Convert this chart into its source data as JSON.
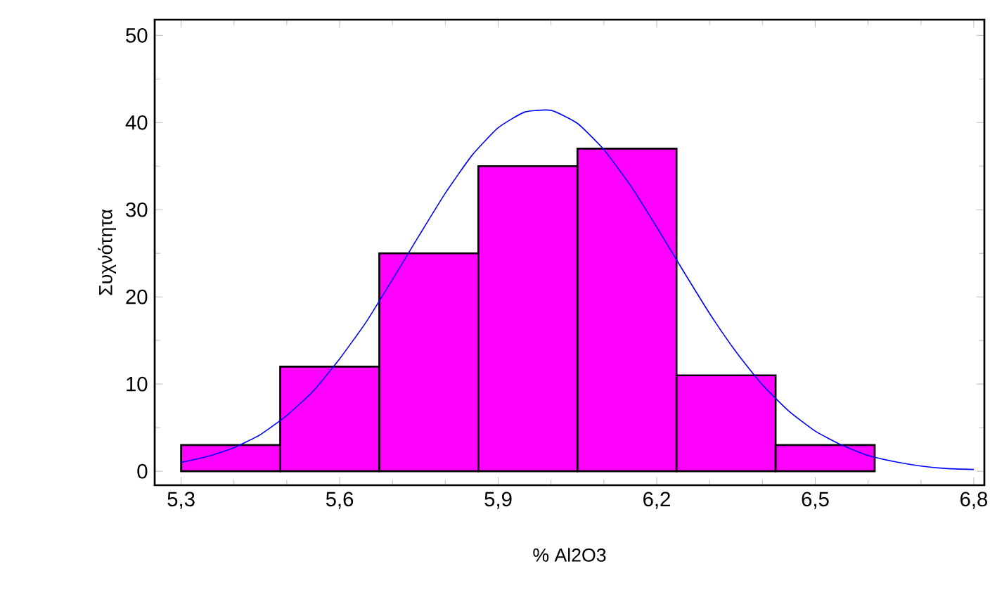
{
  "chart_data": {
    "type": "histogram",
    "xlabel": "% Al2O3",
    "ylabel": "Συχνότητα",
    "series": [
      {
        "color": "#ff00ff",
        "bins": [
          5.3,
          5.4875,
          5.675,
          5.8625,
          6.05,
          6.2375,
          6.425,
          6.6125
        ],
        "values": [
          3,
          12,
          25,
          35,
          37,
          11,
          3
        ]
      },
      {
        "type": "line",
        "color": "#0000ff",
        "x": [
          5.3,
          5.35,
          5.4,
          5.45,
          5.5,
          5.55,
          5.6,
          5.65,
          5.7,
          5.75,
          5.8,
          5.85,
          5.9,
          5.95,
          6.0,
          6.05,
          6.1,
          6.15,
          6.2,
          6.25,
          6.3,
          6.35,
          6.4,
          6.45,
          6.5,
          6.55,
          6.6,
          6.65,
          6.7,
          6.75,
          6.8
        ],
        "values": [
          1.0,
          1.7,
          2.7,
          4.2,
          6.4,
          9.2,
          12.9,
          17.1,
          22.0,
          27.0,
          31.9,
          36.2,
          39.4,
          41.2,
          41.4,
          39.9,
          36.9,
          32.8,
          28.0,
          23.0,
          18.1,
          13.7,
          9.9,
          6.9,
          4.6,
          3.0,
          1.8,
          1.1,
          0.6,
          0.3,
          0.2
        ]
      }
    ],
    "xlim": [
      5.25,
      6.82
    ],
    "ylim": [
      -1.6,
      51.8
    ],
    "xticks": [
      {
        "value": 5.3,
        "label": "5,3"
      },
      {
        "value": 5.6,
        "label": "5,6"
      },
      {
        "value": 5.9,
        "label": "5,9"
      },
      {
        "value": 6.2,
        "label": "6,2"
      },
      {
        "value": 6.5,
        "label": "6,5"
      },
      {
        "value": 6.8,
        "label": "6,8"
      }
    ],
    "yticks": [
      0,
      10,
      20,
      30,
      40,
      50
    ],
    "grid": false
  }
}
